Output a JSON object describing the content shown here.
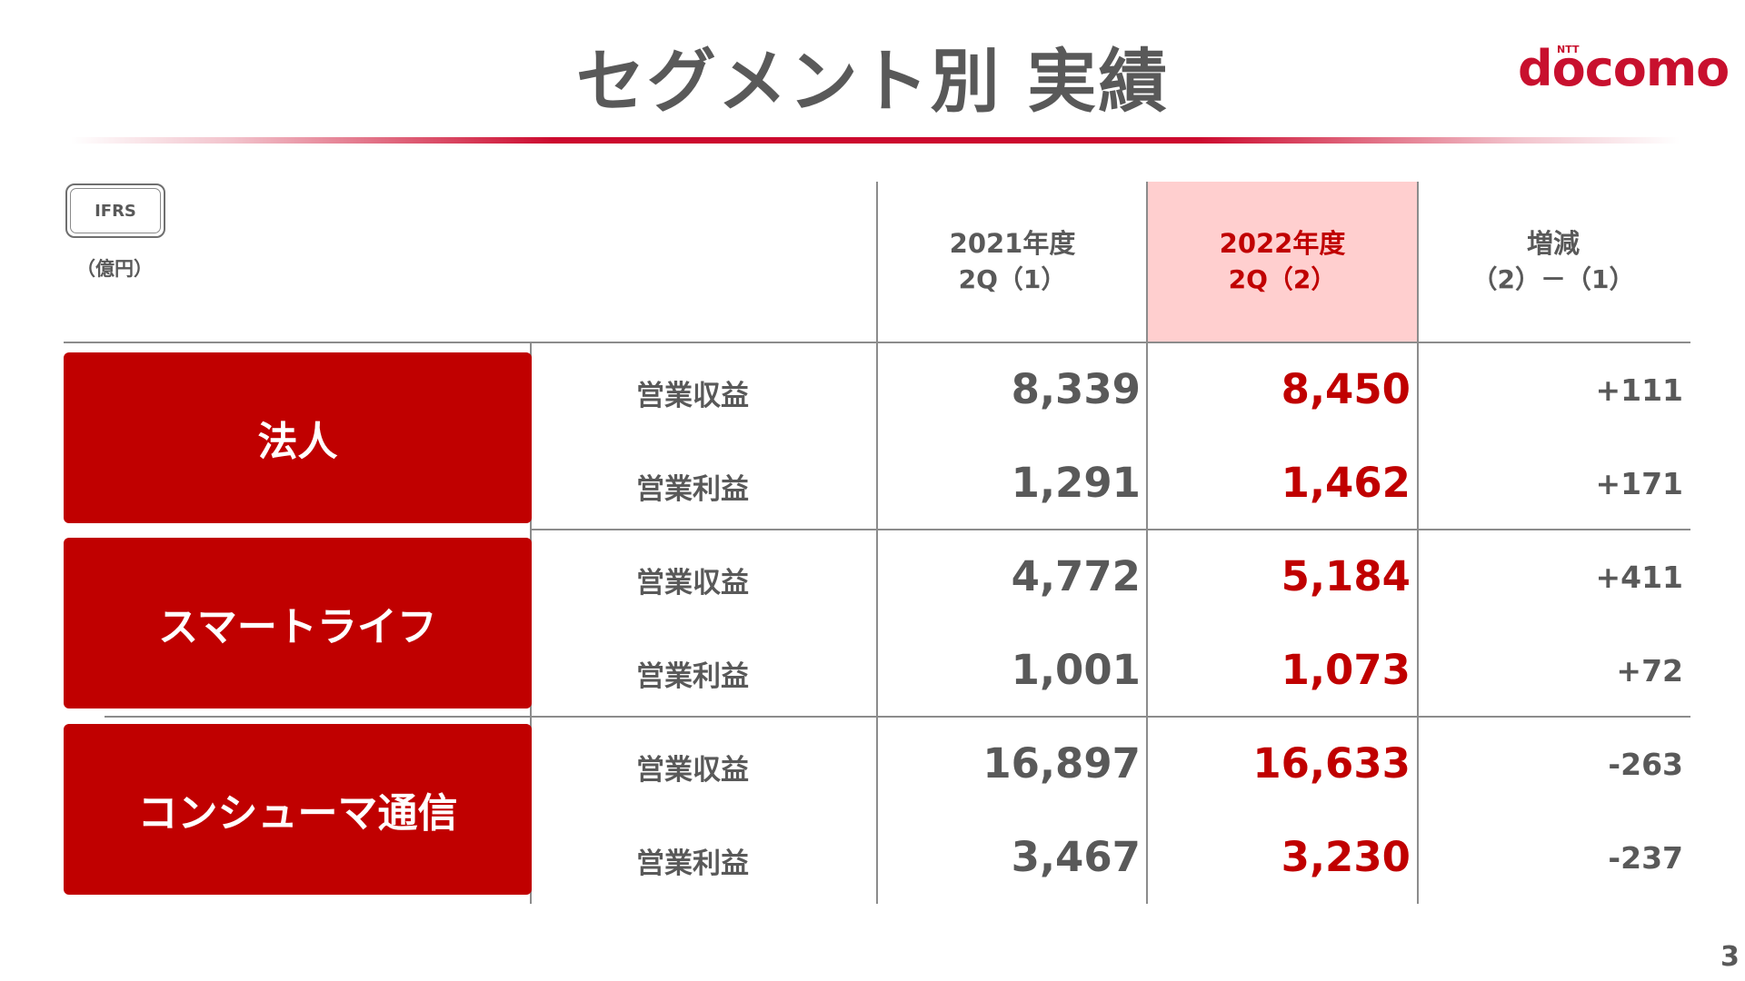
{
  "title": "セグメント別 実績",
  "brand": {
    "sup": "NTT",
    "name": "docomo",
    "color": "#c8102e"
  },
  "badge": "IFRS",
  "unit": "（億円）",
  "columns": [
    {
      "line1": "2021年度",
      "line2": "2Q（1）"
    },
    {
      "line1": "2022年度",
      "line2": "2Q（2）"
    },
    {
      "line1": "増減",
      "line2": "（2）－（1）"
    }
  ],
  "segments": [
    {
      "name": "法人",
      "rows": [
        {
          "metric": "営業収益",
          "prev": "8,339",
          "curr": "8,450",
          "diff": "+111"
        },
        {
          "metric": "営業利益",
          "prev": "1,291",
          "curr": "1,462",
          "diff": "+171"
        }
      ]
    },
    {
      "name": "スマートライフ",
      "rows": [
        {
          "metric": "営業収益",
          "prev": "4,772",
          "curr": "5,184",
          "diff": "+411"
        },
        {
          "metric": "営業利益",
          "prev": "1,001",
          "curr": "1,073",
          "diff": "+72"
        }
      ]
    },
    {
      "name": "コンシューマ通信",
      "rows": [
        {
          "metric": "営業収益",
          "prev": "16,897",
          "curr": "16,633",
          "diff": "-263"
        },
        {
          "metric": "営業利益",
          "prev": "3,467",
          "curr": "3,230",
          "diff": "-237"
        }
      ]
    }
  ],
  "colors": {
    "accent": "#c00000",
    "highlight": "#ffcfcf",
    "text": "#595959"
  },
  "page_number": "3"
}
